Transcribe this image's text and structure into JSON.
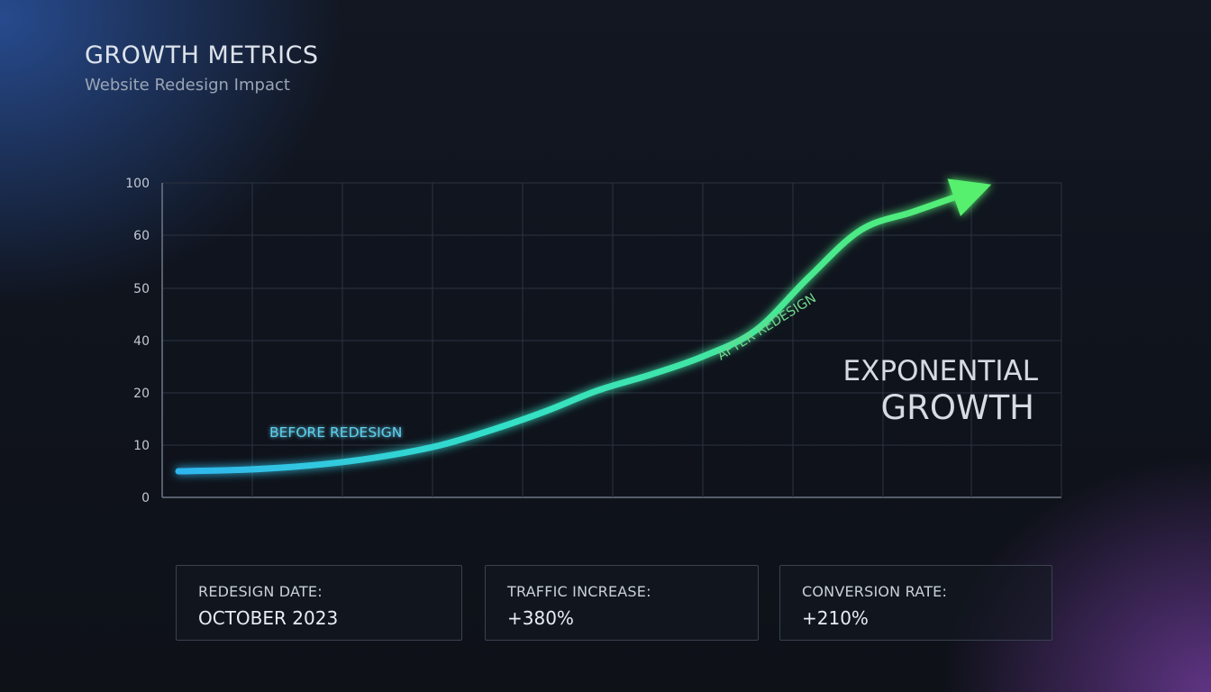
{
  "header": {
    "title": "GROWTH METRICS",
    "subtitle": "Website Redesign Impact"
  },
  "chart_data": {
    "type": "line",
    "title": "",
    "xlabel": "",
    "ylabel": "",
    "y_ticks": [
      100,
      60,
      50,
      40,
      20,
      10,
      0
    ],
    "grid": true,
    "series": [
      {
        "values": [
          5,
          5.2,
          5.7,
          6.6,
          8,
          10,
          13,
          16.5,
          21,
          27,
          34,
          42,
          52,
          64,
          78,
          92
        ]
      }
    ],
    "annotations": {
      "before": "BEFORE REDESIGN",
      "after": "AFTER REDESIGN",
      "headline_line1": "EXPONENTIAL",
      "headline_line2": "GROWTH"
    },
    "colors": {
      "start": "#2fb6f0",
      "end": "#56ef6e",
      "before_label": "#5fd0ec",
      "after_label": "#6fd88c",
      "grid": "#2b3340",
      "axis": "#6f7886"
    }
  },
  "stats": [
    {
      "label": "REDESIGN DATE:",
      "value": "OCTOBER 2023"
    },
    {
      "label": "TRAFFIC INCREASE:",
      "value": "+380%"
    },
    {
      "label": "CONVERSION RATE:",
      "value": "+210%"
    }
  ]
}
